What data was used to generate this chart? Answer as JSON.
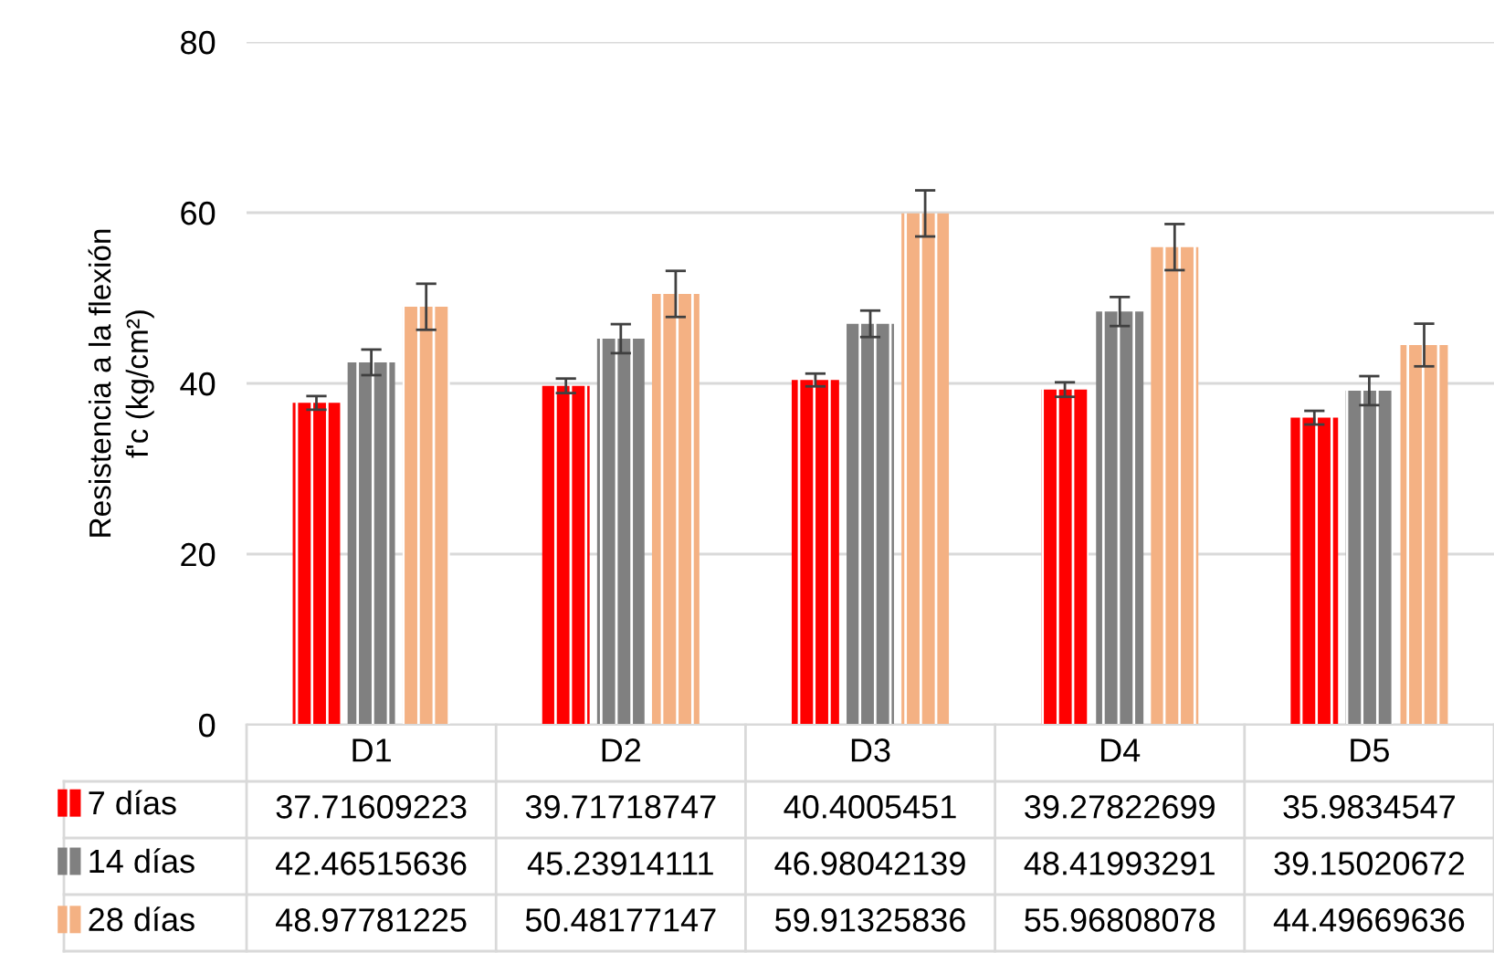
{
  "chart_data": {
    "type": "bar",
    "ylabel": "Resistencia a la flexión\nf'c (kg/cm²)",
    "categories": [
      "D1",
      "D2",
      "D3",
      "D4",
      "D5"
    ],
    "series": [
      {
        "name": "7 días",
        "color": "#ff0000",
        "values": [
          37.71609223,
          39.71718747,
          40.4005451,
          39.27822699,
          35.9834547
        ],
        "errors": [
          0.8,
          0.85,
          0.75,
          0.85,
          0.8
        ]
      },
      {
        "name": "14 días",
        "color": "#808080",
        "values": [
          42.46515636,
          45.23914111,
          46.98042139,
          48.41993291,
          39.15020672
        ],
        "errors": [
          1.5,
          1.7,
          1.55,
          1.7,
          1.7
        ]
      },
      {
        "name": "28 días",
        "color": "#f4b183",
        "values": [
          48.97781225,
          50.48177147,
          59.91325836,
          55.96808078,
          44.49669636
        ],
        "errors": [
          2.7,
          2.7,
          2.7,
          2.7,
          2.5
        ]
      }
    ],
    "ylim": [
      0,
      80
    ],
    "yticks": [
      0,
      20,
      40,
      60,
      80
    ],
    "grid": "y",
    "data_labels": true,
    "legend": "bottom"
  }
}
